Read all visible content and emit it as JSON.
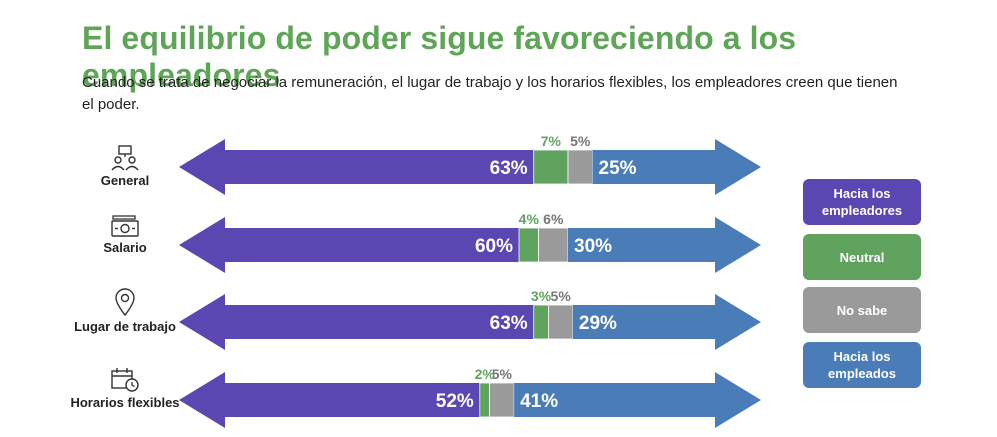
{
  "title": "El equilibrio de poder sigue favoreciendo a los empleadores",
  "subtitle": "Cuando se trata de negociar la remuneración, el lugar de trabajo y los horarios flexibles, los empleadores creen que tienen el poder.",
  "colors": {
    "employers": "#5b46b2",
    "neutral": "#5fa35f",
    "dont_know": "#9a9a9a",
    "employees": "#4a7db8",
    "title": "#5fa557"
  },
  "chart_data": {
    "type": "bar",
    "stacked": true,
    "orientation": "horizontal",
    "categories": [
      "General",
      "Salario",
      "Lugar de trabajo",
      "Horarios flexibles"
    ],
    "series": [
      {
        "name": "Hacia los empleadores",
        "values": [
          63,
          60,
          63,
          52
        ]
      },
      {
        "name": "Neutral",
        "values": [
          7,
          4,
          3,
          2
        ]
      },
      {
        "name": "No sabe",
        "values": [
          5,
          6,
          5,
          5
        ]
      },
      {
        "name": "Hacia los empleados",
        "values": [
          25,
          30,
          29,
          41
        ]
      }
    ],
    "legend_position": "right",
    "value_suffix": "%"
  },
  "rows": [
    {
      "label": "General",
      "icon": "people-network-icon"
    },
    {
      "label": "Salario",
      "icon": "money-icon"
    },
    {
      "label": "Lugar de trabajo",
      "icon": "location-pin-icon"
    },
    {
      "label": "Horarios flexibles",
      "icon": "calendar-clock-icon"
    }
  ],
  "legend": {
    "employers": "Hacia los empleadores",
    "neutral": "Neutral",
    "dont_know": "No sabe",
    "employees": "Hacia los empleados"
  }
}
